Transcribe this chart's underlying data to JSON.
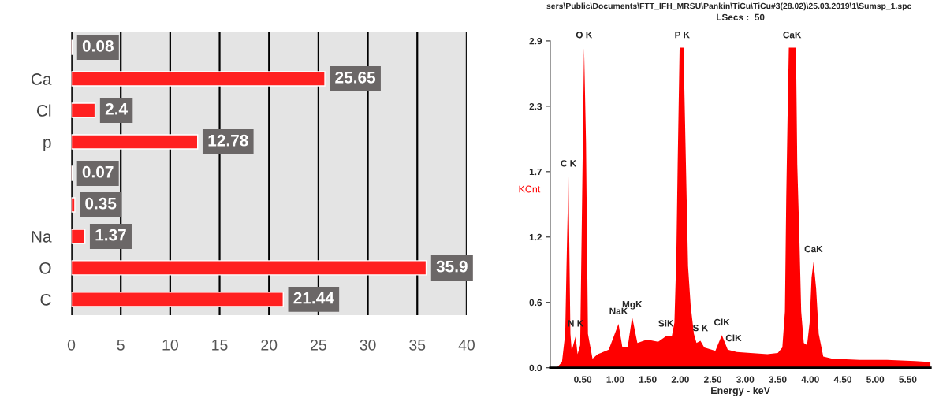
{
  "chart_data": [
    {
      "type": "bar",
      "orientation": "horizontal",
      "categories": [
        null,
        "Ca",
        "Cl",
        "p",
        null,
        null,
        "Na",
        "O",
        "C"
      ],
      "values": [
        0.08,
        25.65,
        2.4,
        12.78,
        0.07,
        0.35,
        1.37,
        35.9,
        21.44
      ],
      "color": "#ff2020",
      "data_labels": true,
      "xlim": [
        0,
        40
      ],
      "xticks": [
        0,
        5,
        10,
        15,
        20,
        25,
        30,
        35,
        40
      ],
      "grid": "x"
    },
    {
      "type": "area",
      "title": "sers\\Public\\Documents\\FTT_IFH_MRSU\\Pankin\\TiCu\\TiCu#3(28.02)\\25.03.2019\\1\\Sumsp_1.spc",
      "subtitle": "LSecs :  50",
      "xlabel": "Energy - keV",
      "ylabel": "KCnt",
      "color": "#ff0000",
      "x": [
        0.0,
        0.1,
        0.18,
        0.23,
        0.25,
        0.28,
        0.31,
        0.33,
        0.39,
        0.42,
        0.46,
        0.49,
        0.52,
        0.55,
        0.58,
        0.65,
        0.73,
        0.9,
        1.05,
        1.11,
        1.19,
        1.26,
        1.34,
        1.49,
        1.66,
        1.78,
        1.87,
        1.91,
        1.94,
        1.96,
        1.99,
        2.05,
        2.08,
        2.12,
        2.16,
        2.21,
        2.25,
        2.31,
        2.37,
        2.54,
        2.64,
        2.73,
        2.87,
        3.08,
        3.34,
        3.5,
        3.57,
        3.61,
        3.63,
        3.65,
        3.67,
        3.78,
        3.8,
        3.83,
        3.86,
        3.9,
        3.95,
        3.99,
        4.02,
        4.05,
        4.09,
        4.13,
        4.2,
        4.34,
        4.76,
        5.18,
        5.61,
        5.85
      ],
      "values": [
        0.0,
        0.0,
        0.05,
        0.3,
        0.9,
        1.7,
        0.3,
        0.15,
        0.28,
        0.12,
        0.2,
        1.5,
        2.84,
        2.0,
        0.3,
        0.08,
        0.12,
        0.16,
        0.39,
        0.18,
        0.18,
        0.45,
        0.22,
        0.25,
        0.23,
        0.28,
        0.28,
        0.4,
        1.0,
        1.8,
        2.84,
        2.84,
        2.0,
        0.9,
        0.55,
        0.3,
        0.22,
        0.24,
        0.18,
        0.15,
        0.29,
        0.16,
        0.14,
        0.13,
        0.12,
        0.13,
        0.18,
        0.5,
        1.5,
        2.2,
        2.84,
        2.84,
        1.8,
        1.2,
        0.5,
        0.22,
        0.2,
        0.4,
        0.8,
        0.94,
        0.7,
        0.3,
        0.1,
        0.08,
        0.07,
        0.07,
        0.06,
        0.05
      ],
      "xlim": [
        0,
        5.85
      ],
      "xticks": [
        {
          "value": 0.5,
          "label": "0.50"
        },
        {
          "value": 1.0,
          "label": "1.00"
        },
        {
          "value": 1.5,
          "label": "1.50"
        },
        {
          "value": 2.0,
          "label": "2.00"
        },
        {
          "value": 2.5,
          "label": "2.50"
        },
        {
          "value": 3.0,
          "label": "3.00"
        },
        {
          "value": 3.5,
          "label": "3.50"
        },
        {
          "value": 4.0,
          "label": "4.00"
        },
        {
          "value": 4.5,
          "label": "4.50"
        },
        {
          "value": 5.0,
          "label": "5.00"
        },
        {
          "value": 5.5,
          "label": "5.50"
        }
      ],
      "ylim": [
        0,
        2.9
      ],
      "yticks": [
        {
          "value": 0,
          "label": "0.0"
        },
        {
          "value": 0.58,
          "label": "0.6"
        },
        {
          "value": 1.16,
          "label": "1.2"
        },
        {
          "value": 1.74,
          "label": "1.7"
        },
        {
          "value": 2.32,
          "label": "2.3"
        },
        {
          "value": 2.9,
          "label": "2.9"
        }
      ],
      "annotations": [
        {
          "text": "O K",
          "x": 0.52,
          "y": 2.84
        },
        {
          "text": "P K",
          "x": 2.03,
          "y": 2.84
        },
        {
          "text": "CaK",
          "x": 3.72,
          "y": 2.84
        },
        {
          "text": "C K",
          "x": 0.28,
          "y": 1.7
        },
        {
          "text": "N K",
          "x": 0.39,
          "y": 0.28
        },
        {
          "text": "NaK",
          "x": 1.05,
          "y": 0.39
        },
        {
          "text": "MgK",
          "x": 1.26,
          "y": 0.45
        },
        {
          "text": "SiK",
          "x": 1.78,
          "y": 0.28
        },
        {
          "text": "S K",
          "x": 2.31,
          "y": 0.24
        },
        {
          "text": "ClK",
          "x": 2.64,
          "y": 0.29
        },
        {
          "text": "ClK",
          "x": 2.82,
          "y": 0.15
        },
        {
          "text": "CaK",
          "x": 4.05,
          "y": 0.94
        }
      ]
    }
  ]
}
